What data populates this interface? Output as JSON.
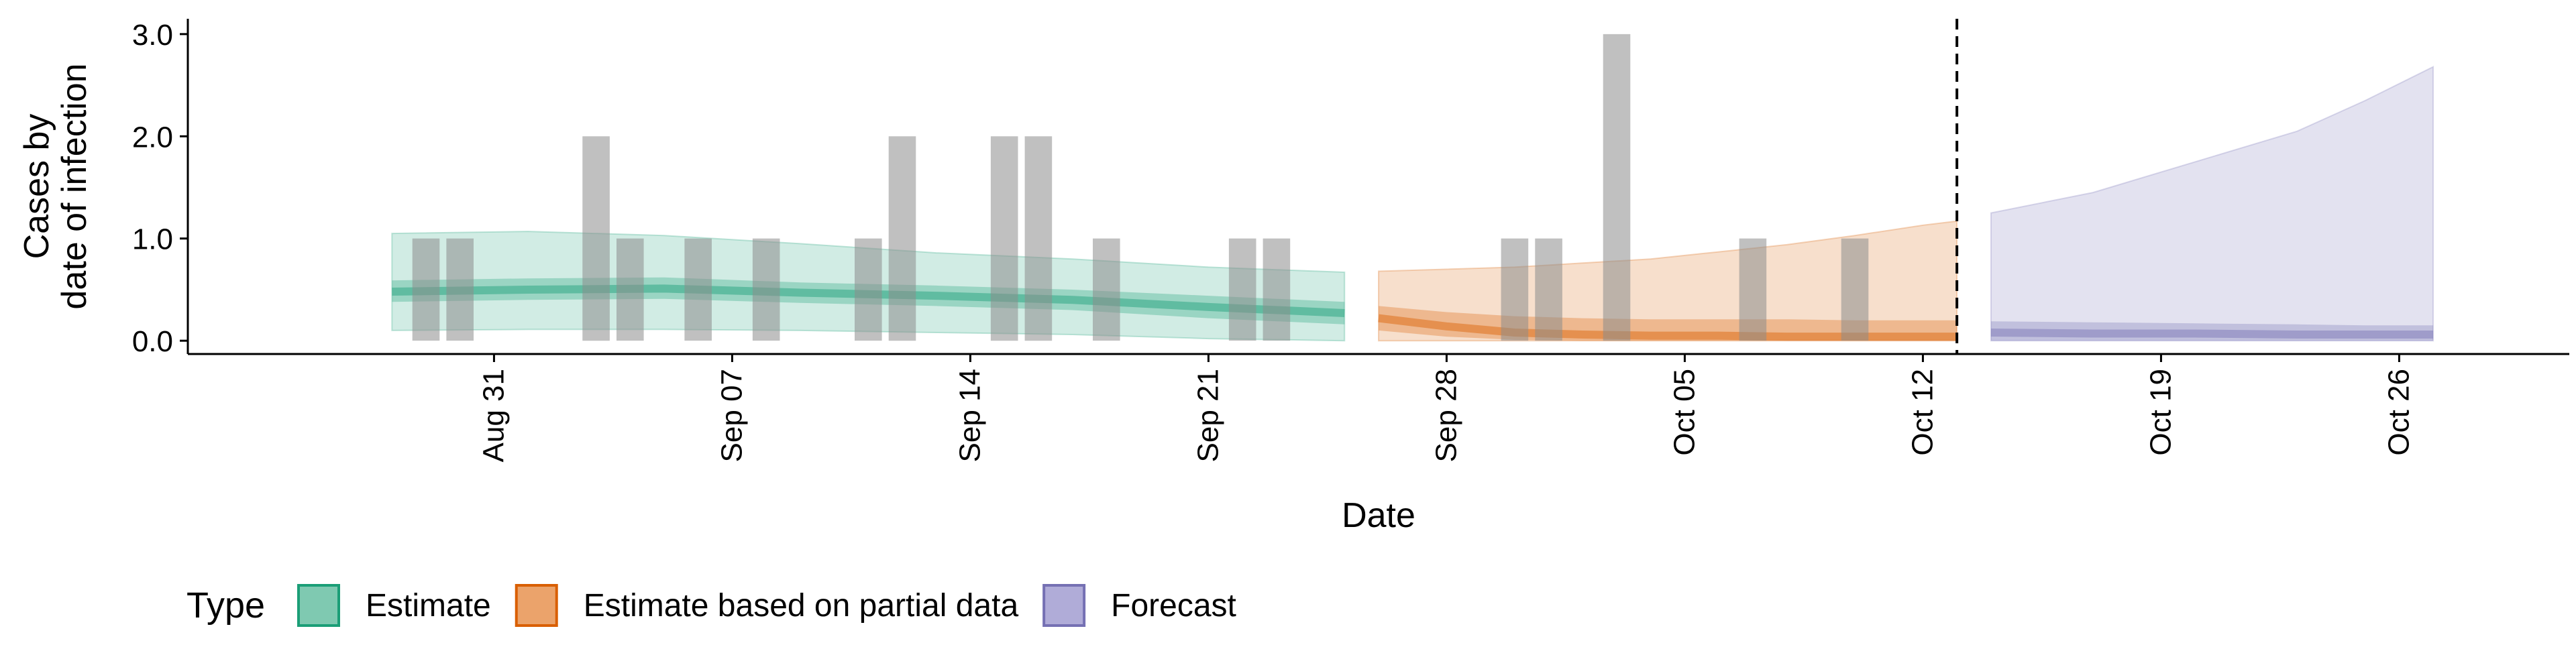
{
  "chart_data": {
    "type": "area",
    "xlabel": "Date",
    "ylabel_lines": [
      "Cases by",
      "date of infection"
    ],
    "ylim": [
      -0.13,
      3.15
    ],
    "yticks": [
      0.0,
      1.0,
      2.0,
      3.0
    ],
    "ytick_labels": [
      "0.0",
      "1.0",
      "2.0",
      "3.0"
    ],
    "xlim": [
      "2020-08-22",
      "2020-10-31"
    ],
    "xticks": [
      "2020-08-31",
      "2020-09-07",
      "2020-09-14",
      "2020-09-21",
      "2020-09-28",
      "2020-10-05",
      "2020-10-12",
      "2020-10-19",
      "2020-10-26"
    ],
    "xtick_labels": [
      "Aug 31",
      "Sep 07",
      "Sep 14",
      "Sep 21",
      "Sep 28",
      "Oct 05",
      "Oct 12",
      "Oct 19",
      "Oct 26"
    ],
    "forecast_start_line": "2020-10-13",
    "observed_cases": [
      {
        "date": "2020-08-29",
        "value": 1
      },
      {
        "date": "2020-08-30",
        "value": 1
      },
      {
        "date": "2020-09-03",
        "value": 2
      },
      {
        "date": "2020-09-04",
        "value": 1
      },
      {
        "date": "2020-09-06",
        "value": 1
      },
      {
        "date": "2020-09-08",
        "value": 1
      },
      {
        "date": "2020-09-11",
        "value": 1
      },
      {
        "date": "2020-09-12",
        "value": 2
      },
      {
        "date": "2020-09-15",
        "value": 2
      },
      {
        "date": "2020-09-16",
        "value": 2
      },
      {
        "date": "2020-09-18",
        "value": 1
      },
      {
        "date": "2020-09-22",
        "value": 1
      },
      {
        "date": "2020-09-23",
        "value": 1
      },
      {
        "date": "2020-09-30",
        "value": 1
      },
      {
        "date": "2020-10-01",
        "value": 1
      },
      {
        "date": "2020-10-03",
        "value": 3
      },
      {
        "date": "2020-10-07",
        "value": 1
      },
      {
        "date": "2020-10-10",
        "value": 1
      }
    ],
    "series": [
      {
        "name": "Estimate",
        "color": "#1b9e77",
        "x": [
          "2020-08-28",
          "2020-09-01",
          "2020-09-05",
          "2020-09-09",
          "2020-09-13",
          "2020-09-17",
          "2020-09-21",
          "2020-09-25"
        ],
        "median": [
          0.48,
          0.5,
          0.51,
          0.47,
          0.44,
          0.4,
          0.33,
          0.27
        ],
        "inner_lower": [
          0.38,
          0.4,
          0.41,
          0.37,
          0.34,
          0.3,
          0.22,
          0.16
        ],
        "inner_upper": [
          0.59,
          0.61,
          0.62,
          0.57,
          0.54,
          0.5,
          0.44,
          0.38
        ],
        "outer_lower": [
          0.1,
          0.11,
          0.11,
          0.1,
          0.08,
          0.06,
          0.02,
          0.0
        ],
        "outer_upper": [
          1.05,
          1.07,
          1.03,
          0.95,
          0.86,
          0.8,
          0.72,
          0.67
        ]
      },
      {
        "name": "Estimate based on partial data",
        "color": "#d95f02",
        "x": [
          "2020-09-26",
          "2020-09-28",
          "2020-09-30",
          "2020-10-02",
          "2020-10-04",
          "2020-10-06",
          "2020-10-08",
          "2020-10-10",
          "2020-10-12",
          "2020-10-13"
        ],
        "median": [
          0.22,
          0.14,
          0.08,
          0.06,
          0.05,
          0.05,
          0.04,
          0.04,
          0.04,
          0.04
        ],
        "inner_lower": [
          0.1,
          0.04,
          0.01,
          0.0,
          0.0,
          0.0,
          0.0,
          0.0,
          0.0,
          0.0
        ],
        "inner_upper": [
          0.34,
          0.28,
          0.24,
          0.22,
          0.21,
          0.21,
          0.21,
          0.2,
          0.2,
          0.2
        ],
        "outer_lower": [
          0.0,
          0.0,
          0.0,
          0.0,
          0.0,
          0.0,
          0.0,
          0.0,
          0.0,
          0.0
        ],
        "outer_upper": [
          0.68,
          0.7,
          0.72,
          0.76,
          0.8,
          0.87,
          0.94,
          1.03,
          1.13,
          1.17
        ]
      },
      {
        "name": "Forecast",
        "color": "#7570b3",
        "x": [
          "2020-10-14",
          "2020-10-17",
          "2020-10-20",
          "2020-10-23",
          "2020-10-25",
          "2020-10-27"
        ],
        "median": [
          0.08,
          0.07,
          0.07,
          0.06,
          0.06,
          0.06
        ],
        "inner_lower": [
          0.0,
          0.0,
          0.0,
          0.0,
          0.0,
          0.0
        ],
        "inner_upper": [
          0.19,
          0.18,
          0.17,
          0.16,
          0.15,
          0.15
        ],
        "outer_lower": [
          0.0,
          0.0,
          0.0,
          0.0,
          0.0,
          0.0
        ],
        "outer_upper": [
          1.25,
          1.45,
          1.75,
          2.05,
          2.35,
          2.68
        ]
      }
    ],
    "legend": {
      "title": "Type",
      "position": "bottom",
      "items": [
        {
          "label": "Estimate",
          "fill": "#7fc9b1",
          "stroke": "#1b9e77"
        },
        {
          "label": "Estimate based on partial data",
          "fill": "#eba36b",
          "stroke": "#d95f02"
        },
        {
          "label": "Forecast",
          "fill": "#b0acd8",
          "stroke": "#7570b3"
        }
      ]
    },
    "grid": false
  }
}
